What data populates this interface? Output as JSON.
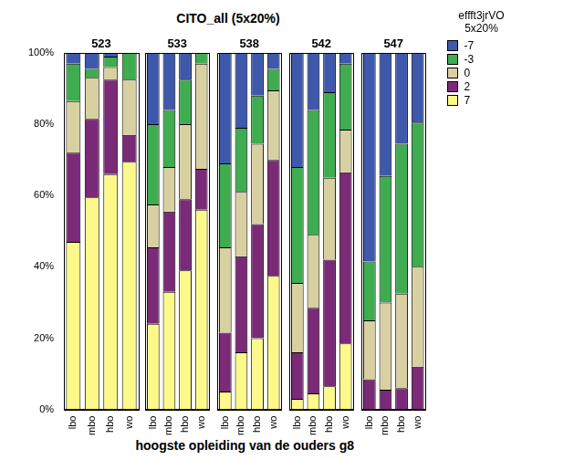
{
  "chart_data": {
    "type": "bar",
    "stacked": true,
    "grid": false,
    "legend": "right",
    "title": "CITO_all (5x20%)",
    "x_label": "hoogste opleiding van de ouders g8",
    "legend_title": [
      "effft3jrVO",
      "5x20%"
    ],
    "ylim": [
      0,
      100
    ],
    "yticks": [
      {
        "value": 0,
        "label": "0%"
      },
      {
        "value": 20,
        "label": "20%"
      },
      {
        "value": 40,
        "label": "40%"
      },
      {
        "value": 60,
        "label": "60%"
      },
      {
        "value": 80,
        "label": "80%"
      },
      {
        "value": 100,
        "label": "100%"
      }
    ],
    "categories": [
      "lbo",
      "mbo",
      "hbo",
      "wo"
    ],
    "panels": [
      {
        "title": "523",
        "series": [
          {
            "name": "-7",
            "color": "#3e58ac",
            "values": [
              3,
              4.5,
              1,
              0
            ]
          },
          {
            "name": "-3",
            "color": "#3fac4f",
            "values": [
              10.5,
              2.5,
              3,
              7.5
            ]
          },
          {
            "name": "0",
            "color": "#d9d0a2",
            "values": [
              14.5,
              11.5,
              3.5,
              15.5
            ]
          },
          {
            "name": "2",
            "color": "#7b2a78",
            "values": [
              25,
              22,
              26.5,
              7.5
            ]
          },
          {
            "name": "7",
            "color": "#fcf98a",
            "values": [
              47,
              59.5,
              66,
              69.5
            ]
          }
        ]
      },
      {
        "title": "533",
        "series": [
          {
            "name": "-7",
            "color": "#3e58ac",
            "values": [
              20,
              16,
              7.5,
              0
            ]
          },
          {
            "name": "-3",
            "color": "#3fac4f",
            "values": [
              22.5,
              16,
              12.5,
              3
            ]
          },
          {
            "name": "0",
            "color": "#d9d0a2",
            "values": [
              12,
              12.5,
              21,
              29.5
            ]
          },
          {
            "name": "2",
            "color": "#7b2a78",
            "values": [
              21.5,
              22.5,
              20,
              11.5
            ]
          },
          {
            "name": "7",
            "color": "#fcf98a",
            "values": [
              24,
              33,
              39,
              56
            ]
          }
        ]
      },
      {
        "title": "538",
        "series": [
          {
            "name": "-7",
            "color": "#3e58ac",
            "values": [
              31,
              21,
              12,
              4.5
            ]
          },
          {
            "name": "-3",
            "color": "#3fac4f",
            "values": [
              23.5,
              18,
              13.5,
              6
            ]
          },
          {
            "name": "0",
            "color": "#d9d0a2",
            "values": [
              24,
              18,
              22.5,
              19.5
            ]
          },
          {
            "name": "2",
            "color": "#7b2a78",
            "values": [
              16.5,
              27,
              32,
              32.5
            ]
          },
          {
            "name": "7",
            "color": "#fcf98a",
            "values": [
              5,
              16,
              20,
              37.5
            ]
          }
        ]
      },
      {
        "title": "542",
        "series": [
          {
            "name": "-7",
            "color": "#3e58ac",
            "values": [
              32,
              16,
              11,
              3
            ]
          },
          {
            "name": "-3",
            "color": "#3fac4f",
            "values": [
              32.5,
              35,
              24,
              18.5
            ]
          },
          {
            "name": "0",
            "color": "#d9d0a2",
            "values": [
              19.5,
              20.5,
              23,
              12
            ]
          },
          {
            "name": "2",
            "color": "#7b2a78",
            "values": [
              13,
              24,
              35.5,
              48
            ]
          },
          {
            "name": "7",
            "color": "#fcf98a",
            "values": [
              3,
              4.5,
              6.5,
              18.5
            ]
          }
        ]
      },
      {
        "title": "547",
        "series": [
          {
            "name": "-7",
            "color": "#3e58ac",
            "values": [
              58.5,
              34.5,
              25.5,
              19.5
            ]
          },
          {
            "name": "-3",
            "color": "#3fac4f",
            "values": [
              16.5,
              35.5,
              42,
              40.5
            ]
          },
          {
            "name": "0",
            "color": "#d9d0a2",
            "values": [
              16.5,
              24.5,
              26.5,
              28
            ]
          },
          {
            "name": "2",
            "color": "#7b2a78",
            "values": [
              8.5,
              5.5,
              6,
              12
            ]
          },
          {
            "name": "7",
            "color": "#fcf98a",
            "values": [
              0,
              0,
              0,
              0
            ]
          }
        ]
      }
    ]
  }
}
